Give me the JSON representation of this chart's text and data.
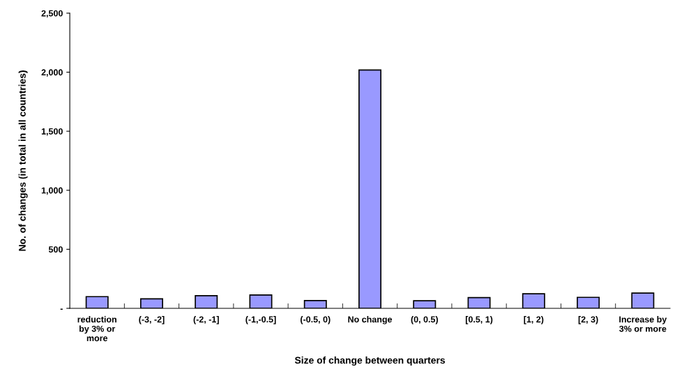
{
  "chart_data": {
    "type": "bar",
    "xlabel": "Size of change between quarters",
    "ylabel": "No. of changes (in total in all countries)",
    "categories": [
      "reduction\nby 3% or\nmore",
      "(-3, -2]",
      "(-2, -1]",
      "(-1,-0.5]",
      "(-0.5, 0)",
      "No change",
      "(0, 0.5)",
      "[0.5, 1)",
      "[1, 2)",
      "[2, 3)",
      "Increase by\n3% or more"
    ],
    "values": [
      99,
      80,
      107,
      113,
      66,
      2018,
      64,
      91,
      123,
      93,
      129
    ],
    "color": "#9999ff",
    "ylim": [
      0,
      2500
    ],
    "yticks": [
      {
        "value": 0,
        "label": "-"
      },
      {
        "value": 500,
        "label": "500"
      },
      {
        "value": 1000,
        "label": "1,000"
      },
      {
        "value": 1500,
        "label": "1,500"
      },
      {
        "value": 2000,
        "label": "2,000"
      },
      {
        "value": 2500,
        "label": "2,500"
      }
    ],
    "grid": false,
    "legend": false
  }
}
